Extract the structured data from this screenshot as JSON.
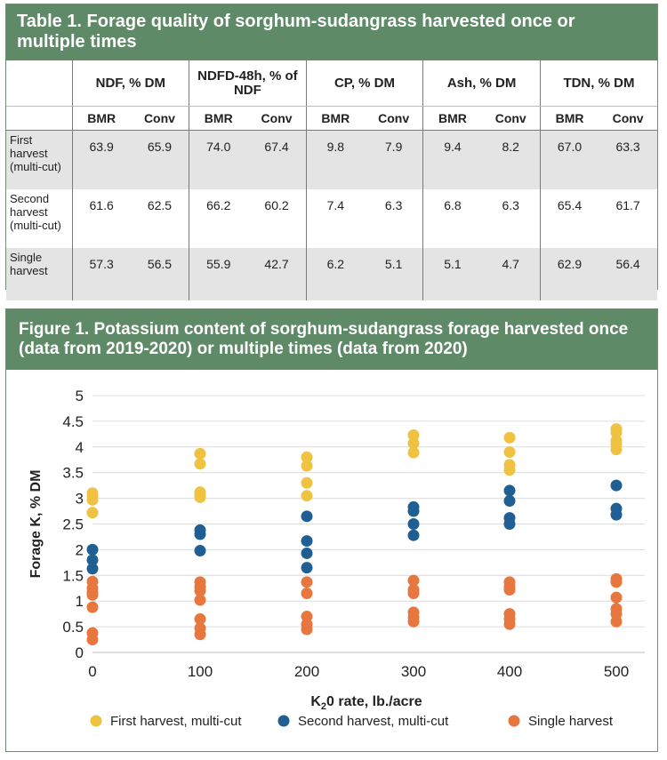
{
  "table": {
    "title": "Table 1. Forage quality of sorghum-sudangrass harvested once or multiple times",
    "groups": [
      "NDF, % DM",
      "NDFD-48h, % of NDF",
      "CP, % DM",
      "Ash, % DM",
      "TDN, % DM"
    ],
    "subheaders": [
      "BMR",
      "Conv"
    ],
    "rows": [
      {
        "label": "First harvest (multi-cut)",
        "values": [
          "63.9",
          "65.9",
          "74.0",
          "67.4",
          "9.8",
          "7.9",
          "9.4",
          "8.2",
          "67.0",
          "63.3"
        ]
      },
      {
        "label": "Second harvest (multi-cut)",
        "values": [
          "61.6",
          "62.5",
          "66.2",
          "60.2",
          "7.4",
          "6.3",
          "6.8",
          "6.3",
          "65.4",
          "61.7"
        ]
      },
      {
        "label": "Single harvest",
        "values": [
          "57.3",
          "56.5",
          "55.9",
          "42.7",
          "6.2",
          "5.1",
          "5.1",
          "4.7",
          "62.9",
          "56.4"
        ]
      }
    ]
  },
  "figure": {
    "title": "Figure 1. Potassium content of sorghum-sudangrass forage harvested once (data from 2019-2020) or multiple times (data from 2020)"
  },
  "chart_data": {
    "type": "scatter",
    "xlabel_main": "K",
    "xlabel_sub": "2",
    "xlabel_rest": "0 rate, lb./acre",
    "ylabel": "Forage K, % DM",
    "xlim": [
      0,
      500
    ],
    "ylim": [
      0,
      5
    ],
    "xticks": [
      0,
      100,
      200,
      300,
      400,
      500
    ],
    "yticks": [
      0,
      0.5,
      1,
      1.5,
      2,
      2.5,
      3,
      3.5,
      4,
      4.5,
      5
    ],
    "grid": true,
    "legend_position": "bottom",
    "series": [
      {
        "name": "First harvest, multi-cut",
        "color": "#f0c242",
        "points": [
          [
            0,
            3.1
          ],
          [
            0,
            3.05
          ],
          [
            0,
            2.97
          ],
          [
            0,
            2.72
          ],
          [
            100,
            3.87
          ],
          [
            100,
            3.67
          ],
          [
            100,
            3.12
          ],
          [
            100,
            3.07
          ],
          [
            100,
            3.02
          ],
          [
            200,
            3.8
          ],
          [
            200,
            3.63
          ],
          [
            200,
            3.3
          ],
          [
            200,
            3.05
          ],
          [
            300,
            4.23
          ],
          [
            300,
            4.07
          ],
          [
            300,
            3.89
          ],
          [
            400,
            4.18
          ],
          [
            400,
            3.9
          ],
          [
            400,
            3.65
          ],
          [
            400,
            3.55
          ],
          [
            500,
            4.35
          ],
          [
            500,
            4.28
          ],
          [
            500,
            4.12
          ],
          [
            500,
            4.05
          ],
          [
            500,
            3.95
          ]
        ]
      },
      {
        "name": "Second harvest, multi-cut",
        "color": "#1f5f94",
        "points": [
          [
            0,
            2.0
          ],
          [
            0,
            1.8
          ],
          [
            0,
            1.63
          ],
          [
            100,
            2.38
          ],
          [
            100,
            2.3
          ],
          [
            100,
            1.98
          ],
          [
            200,
            2.65
          ],
          [
            200,
            2.17
          ],
          [
            200,
            1.93
          ],
          [
            200,
            1.65
          ],
          [
            300,
            2.83
          ],
          [
            300,
            2.75
          ],
          [
            300,
            2.5
          ],
          [
            300,
            2.28
          ],
          [
            400,
            3.15
          ],
          [
            400,
            2.95
          ],
          [
            400,
            2.62
          ],
          [
            400,
            2.5
          ],
          [
            500,
            3.25
          ],
          [
            500,
            2.8
          ],
          [
            500,
            2.68
          ]
        ]
      },
      {
        "name": "Single harvest",
        "color": "#e8773f",
        "points": [
          [
            0,
            1.38
          ],
          [
            0,
            1.25
          ],
          [
            0,
            1.17
          ],
          [
            0,
            1.12
          ],
          [
            0,
            0.88
          ],
          [
            0,
            0.38
          ],
          [
            0,
            0.25
          ],
          [
            100,
            1.37
          ],
          [
            100,
            1.28
          ],
          [
            100,
            1.2
          ],
          [
            100,
            1.02
          ],
          [
            100,
            0.65
          ],
          [
            100,
            0.47
          ],
          [
            100,
            0.35
          ],
          [
            200,
            1.37
          ],
          [
            200,
            1.15
          ],
          [
            200,
            0.7
          ],
          [
            200,
            0.55
          ],
          [
            200,
            0.45
          ],
          [
            300,
            1.4
          ],
          [
            300,
            1.22
          ],
          [
            300,
            1.15
          ],
          [
            300,
            0.78
          ],
          [
            300,
            0.68
          ],
          [
            300,
            0.6
          ],
          [
            400,
            1.37
          ],
          [
            400,
            1.28
          ],
          [
            400,
            1.22
          ],
          [
            400,
            0.75
          ],
          [
            400,
            0.65
          ],
          [
            400,
            0.55
          ],
          [
            500,
            1.43
          ],
          [
            500,
            1.37
          ],
          [
            500,
            1.07
          ],
          [
            500,
            0.85
          ],
          [
            500,
            0.75
          ],
          [
            500,
            0.6
          ]
        ]
      }
    ]
  }
}
